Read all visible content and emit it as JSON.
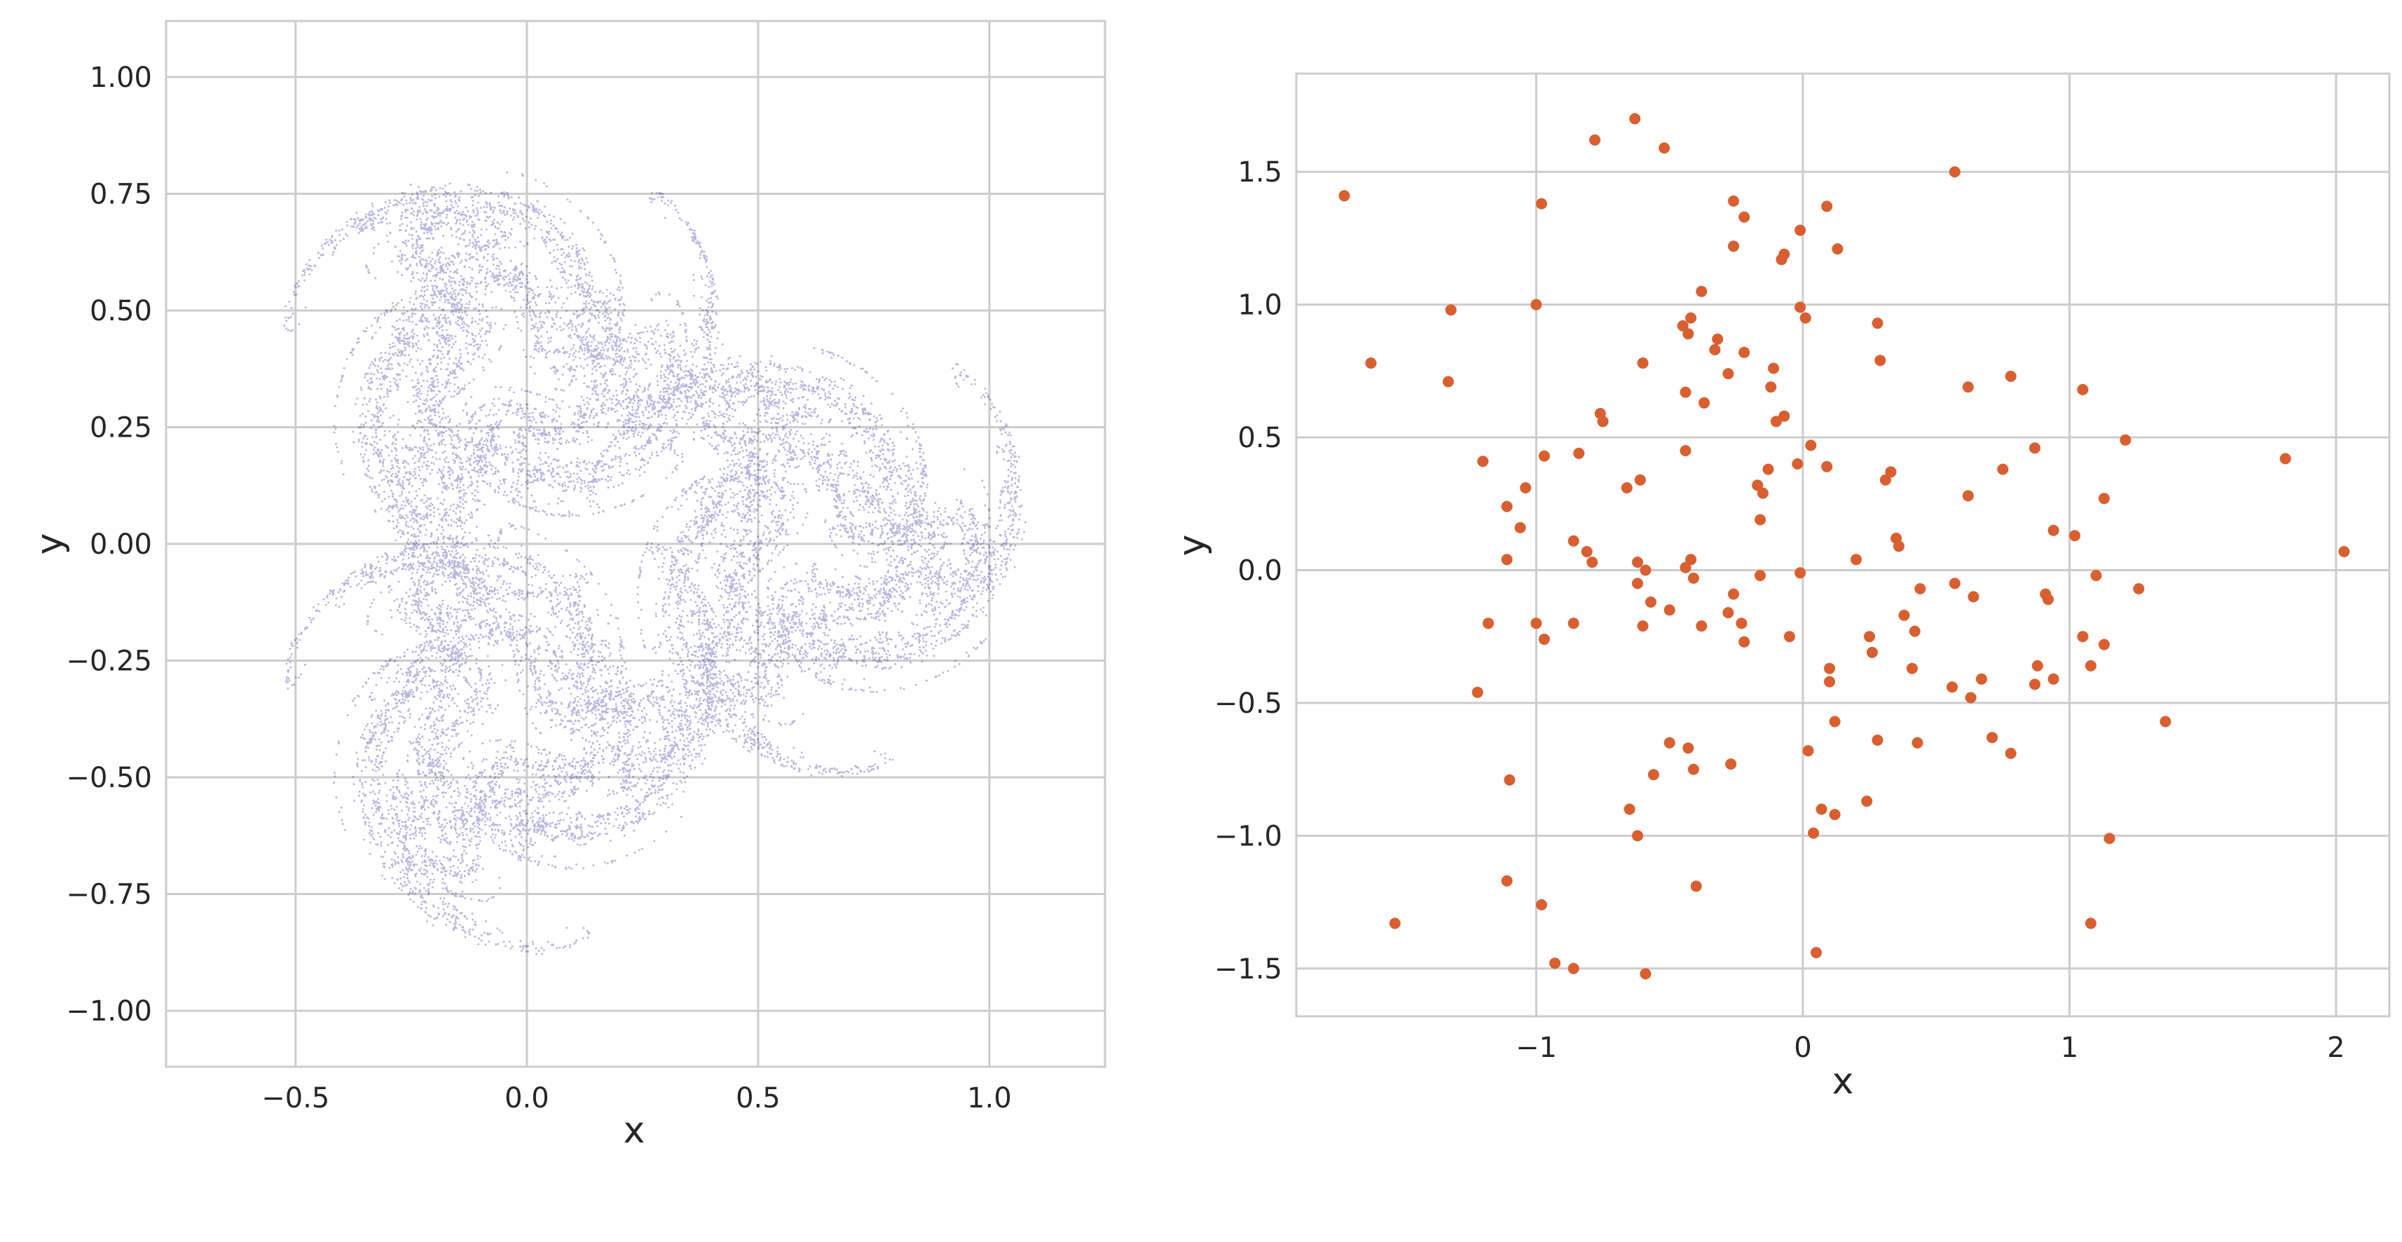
{
  "colors": {
    "background": "#ffffff",
    "grid": "#cccccc",
    "left_points": "#00008b",
    "right_points": "#d95f30",
    "text": "#262626"
  },
  "chart_data": [
    {
      "type": "scatter",
      "title": "",
      "xlabel": "x",
      "ylabel": "y",
      "xlim": [
        -0.78,
        1.25
      ],
      "ylim": [
        -1.12,
        1.12
      ],
      "xticks": [
        -0.5,
        0.0,
        0.5,
        1.0
      ],
      "xtick_labels": [
        "−0.5",
        "0.0",
        "0.5",
        "1.0"
      ],
      "yticks": [
        -1.0,
        -0.75,
        -0.5,
        -0.25,
        0.0,
        0.25,
        0.5,
        0.75,
        1.0
      ],
      "ytick_labels": [
        "−1.00",
        "−0.75",
        "−0.50",
        "−0.25",
        "0.00",
        "0.25",
        "0.50",
        "0.75",
        "1.00"
      ],
      "grid": true,
      "legend": "none",
      "series": [
        {
          "marker": "small dot",
          "opacity": 0.18,
          "description_of_shape": "dense attractor with three-fold symmetry",
          "generator": "ikeda-like trefoil map",
          "count": 60000
        }
      ]
    },
    {
      "type": "scatter",
      "title": "",
      "xlabel": "x",
      "ylabel": "y",
      "xlim": [
        -1.9,
        2.2
      ],
      "ylim": [
        -1.68,
        1.87
      ],
      "xticks": [
        -1,
        0,
        1,
        2
      ],
      "xtick_labels": [
        "−1",
        "0",
        "1",
        "2"
      ],
      "yticks": [
        -1.5,
        -1.0,
        -0.5,
        0.0,
        0.5,
        1.0,
        1.5
      ],
      "ytick_labels": [
        "−1.5",
        "−1.0",
        "−0.5",
        "0.0",
        "0.5",
        "1.0",
        "1.5"
      ],
      "grid": true,
      "legend": "none",
      "points": [
        [
          -1.72,
          1.41
        ],
        [
          -1.62,
          0.78
        ],
        [
          -1.32,
          0.98
        ],
        [
          -1.33,
          0.71
        ],
        [
          -0.98,
          1.38
        ],
        [
          -1.0,
          1.0
        ],
        [
          -0.78,
          1.62
        ],
        [
          -0.63,
          1.7
        ],
        [
          -0.52,
          1.59
        ],
        [
          -0.26,
          1.39
        ],
        [
          -0.22,
          1.33
        ],
        [
          -0.26,
          1.22
        ],
        [
          -0.08,
          1.17
        ],
        [
          -0.07,
          1.19
        ],
        [
          0.09,
          1.37
        ],
        [
          0.13,
          1.21
        ],
        [
          0.57,
          1.5
        ],
        [
          -0.01,
          1.28
        ],
        [
          -0.38,
          1.05
        ],
        [
          -0.45,
          0.92
        ],
        [
          -0.42,
          0.95
        ],
        [
          -0.43,
          0.89
        ],
        [
          -0.32,
          0.87
        ],
        [
          -0.33,
          0.83
        ],
        [
          -0.28,
          0.74
        ],
        [
          -0.22,
          0.82
        ],
        [
          -0.01,
          0.99
        ],
        [
          0.01,
          0.95
        ],
        [
          0.28,
          0.93
        ],
        [
          0.29,
          0.79
        ],
        [
          -0.6,
          0.78
        ],
        [
          -0.44,
          0.67
        ],
        [
          -0.37,
          0.63
        ],
        [
          -0.11,
          0.76
        ],
        [
          -0.12,
          0.69
        ],
        [
          -0.1,
          0.56
        ],
        [
          -0.07,
          0.58
        ],
        [
          0.62,
          0.69
        ],
        [
          0.78,
          0.73
        ],
        [
          1.05,
          0.68
        ],
        [
          -0.76,
          0.59
        ],
        [
          -0.75,
          0.56
        ],
        [
          -0.97,
          0.43
        ],
        [
          -0.84,
          0.44
        ],
        [
          -1.2,
          0.41
        ],
        [
          -1.04,
          0.31
        ],
        [
          -1.11,
          0.24
        ],
        [
          -1.06,
          0.16
        ],
        [
          -0.61,
          0.34
        ],
        [
          -0.66,
          0.31
        ],
        [
          -0.44,
          0.45
        ],
        [
          -0.17,
          0.32
        ],
        [
          -0.15,
          0.29
        ],
        [
          -0.13,
          0.38
        ],
        [
          -0.16,
          0.19
        ],
        [
          -0.02,
          0.4
        ],
        [
          0.03,
          0.47
        ],
        [
          0.09,
          0.39
        ],
        [
          0.31,
          0.34
        ],
        [
          0.33,
          0.37
        ],
        [
          0.62,
          0.28
        ],
        [
          0.75,
          0.38
        ],
        [
          0.87,
          0.46
        ],
        [
          1.21,
          0.49
        ],
        [
          1.13,
          0.27
        ],
        [
          1.81,
          0.42
        ],
        [
          -1.11,
          0.04
        ],
        [
          -0.86,
          0.11
        ],
        [
          -0.81,
          0.07
        ],
        [
          -0.79,
          0.03
        ],
        [
          -0.62,
          0.03
        ],
        [
          -0.59,
          0.0
        ],
        [
          -0.62,
          -0.05
        ],
        [
          -0.44,
          0.01
        ],
        [
          -0.42,
          0.04
        ],
        [
          -0.41,
          -0.03
        ],
        [
          -0.16,
          -0.02
        ],
        [
          0.2,
          0.04
        ],
        [
          0.35,
          0.12
        ],
        [
          0.36,
          0.09
        ],
        [
          0.94,
          0.15
        ],
        [
          1.02,
          0.13
        ],
        [
          -0.01,
          -0.01
        ],
        [
          2.03,
          0.07
        ],
        [
          -1.0,
          -0.2
        ],
        [
          -0.97,
          -0.26
        ],
        [
          -0.86,
          -0.2
        ],
        [
          -0.6,
          -0.21
        ],
        [
          -0.57,
          -0.12
        ],
        [
          -0.5,
          -0.15
        ],
        [
          -0.38,
          -0.21
        ],
        [
          -0.28,
          -0.16
        ],
        [
          -0.26,
          -0.09
        ],
        [
          -0.23,
          -0.2
        ],
        [
          -0.22,
          -0.27
        ],
        [
          -0.05,
          -0.25
        ],
        [
          0.38,
          -0.17
        ],
        [
          0.42,
          -0.23
        ],
        [
          0.44,
          -0.07
        ],
        [
          0.57,
          -0.05
        ],
        [
          0.64,
          -0.1
        ],
        [
          0.25,
          -0.25
        ],
        [
          0.26,
          -0.31
        ],
        [
          0.91,
          -0.09
        ],
        [
          0.92,
          -0.11
        ],
        [
          1.05,
          -0.25
        ],
        [
          1.1,
          -0.02
        ],
        [
          1.13,
          -0.28
        ],
        [
          1.26,
          -0.07
        ],
        [
          -1.22,
          -0.46
        ],
        [
          -1.18,
          -0.2
        ],
        [
          0.1,
          -0.37
        ],
        [
          0.1,
          -0.42
        ],
        [
          0.41,
          -0.37
        ],
        [
          0.56,
          -0.44
        ],
        [
          0.63,
          -0.48
        ],
        [
          0.67,
          -0.41
        ],
        [
          0.87,
          -0.43
        ],
        [
          0.88,
          -0.36
        ],
        [
          0.94,
          -0.41
        ],
        [
          1.08,
          -0.36
        ],
        [
          -0.5,
          -0.65
        ],
        [
          -0.43,
          -0.67
        ],
        [
          -0.41,
          -0.75
        ],
        [
          -0.27,
          -0.73
        ],
        [
          0.02,
          -0.68
        ],
        [
          0.12,
          -0.57
        ],
        [
          0.28,
          -0.64
        ],
        [
          0.43,
          -0.65
        ],
        [
          0.71,
          -0.63
        ],
        [
          0.78,
          -0.69
        ],
        [
          1.36,
          -0.57
        ],
        [
          -1.1,
          -0.79
        ],
        [
          -0.56,
          -0.77
        ],
        [
          -0.65,
          -0.9
        ],
        [
          -0.62,
          -1.0
        ],
        [
          0.04,
          -0.99
        ],
        [
          0.07,
          -0.9
        ],
        [
          0.12,
          -0.92
        ],
        [
          0.24,
          -0.87
        ],
        [
          1.15,
          -1.01
        ],
        [
          -1.11,
          -1.17
        ],
        [
          -0.98,
          -1.26
        ],
        [
          -0.4,
          -1.19
        ],
        [
          -1.53,
          -1.33
        ],
        [
          -0.93,
          -1.48
        ],
        [
          -0.86,
          -1.5
        ],
        [
          -0.59,
          -1.52
        ],
        [
          0.05,
          -1.44
        ],
        [
          1.08,
          -1.33
        ]
      ]
    }
  ]
}
